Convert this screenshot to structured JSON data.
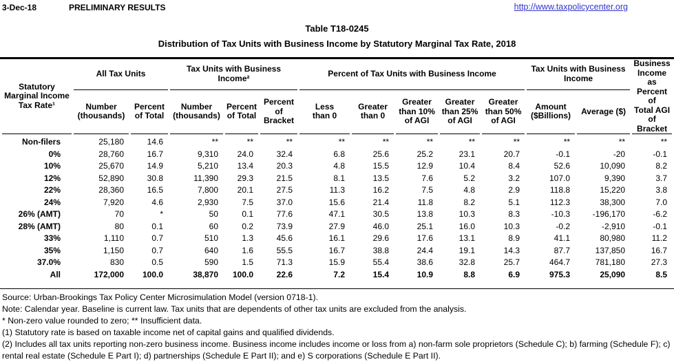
{
  "page": {
    "date": "3-Dec-18",
    "status": "PRELIMINARY RESULTS",
    "url": "http://www.taxpolicycenter.org",
    "table_number": "Table T18-0245",
    "title": "Distribution of Tax Units with Business Income by Statutory Marginal Tax Rate, 2018"
  },
  "table": {
    "stub_header": "Statutory\nMarginal Income\nTax Rate¹",
    "groups": [
      {
        "label": "All Tax Units"
      },
      {
        "label": "Tax Units with Business Income²"
      },
      {
        "label": "Percent of Tax Units with Business Income"
      },
      {
        "label": "Tax Units with Business\nIncome"
      }
    ],
    "last_col_header": "Business\nIncome as\nPercent of\nTotal AGI\nof Bracket",
    "sub_headers": [
      "Number\n(thousands)",
      "Percent\nof Total",
      "Number\n(thousands)",
      "Percent\nof Total",
      "Percent\nof\nBracket",
      "Less\nthan 0",
      "Greater\nthan 0",
      "Greater\nthan 10%\nof AGI",
      "Greater\nthan 25%\nof AGI",
      "Greater\nthan 50%\nof AGI",
      "Amount\n($Billions)",
      "Average ($)"
    ],
    "rows": [
      [
        "Non-filers",
        "25,180",
        "14.6",
        "**",
        "**",
        "**",
        "**",
        "**",
        "**",
        "**",
        "**",
        "**",
        "**",
        "**"
      ],
      [
        "0%",
        "28,760",
        "16.7",
        "9,310",
        "24.0",
        "32.4",
        "6.8",
        "25.6",
        "25.2",
        "23.1",
        "20.7",
        "-0.1",
        "-20",
        "-0.1"
      ],
      [
        "10%",
        "25,670",
        "14.9",
        "5,210",
        "13.4",
        "20.3",
        "4.8",
        "15.5",
        "12.9",
        "10.4",
        "8.4",
        "52.6",
        "10,090",
        "8.2"
      ],
      [
        "12%",
        "52,890",
        "30.8",
        "11,390",
        "29.3",
        "21.5",
        "8.1",
        "13.5",
        "7.6",
        "5.2",
        "3.2",
        "107.0",
        "9,390",
        "3.7"
      ],
      [
        "22%",
        "28,360",
        "16.5",
        "7,800",
        "20.1",
        "27.5",
        "11.3",
        "16.2",
        "7.5",
        "4.8",
        "2.9",
        "118.8",
        "15,220",
        "3.8"
      ],
      [
        "24%",
        "7,920",
        "4.6",
        "2,930",
        "7.5",
        "37.0",
        "15.6",
        "21.4",
        "11.8",
        "8.2",
        "5.1",
        "112.3",
        "38,300",
        "7.0"
      ],
      [
        "26% (AMT)",
        "70",
        "*",
        "50",
        "0.1",
        "77.6",
        "47.1",
        "30.5",
        "13.8",
        "10.3",
        "8.3",
        "-10.3",
        "-196,170",
        "-6.2"
      ],
      [
        "28% (AMT)",
        "80",
        "0.1",
        "60",
        "0.2",
        "73.9",
        "27.9",
        "46.0",
        "25.1",
        "16.0",
        "10.3",
        "-0.2",
        "-2,910",
        "-0.1"
      ],
      [
        "33%",
        "1,110",
        "0.7",
        "510",
        "1.3",
        "45.6",
        "16.1",
        "29.6",
        "17.6",
        "13.1",
        "8.9",
        "41.1",
        "80,980",
        "11.2"
      ],
      [
        "35%",
        "1,150",
        "0.7",
        "640",
        "1.6",
        "55.5",
        "16.7",
        "38.8",
        "24.4",
        "19.1",
        "14.3",
        "87.7",
        "137,850",
        "16.7"
      ],
      [
        "37.0%",
        "830",
        "0.5",
        "590",
        "1.5",
        "71.3",
        "15.9",
        "55.4",
        "38.6",
        "32.8",
        "25.7",
        "464.7",
        "781,180",
        "27.3"
      ],
      [
        "All",
        "172,000",
        "100.0",
        "38,870",
        "100.0",
        "22.6",
        "7.2",
        "15.4",
        "10.9",
        "8.8",
        "6.9",
        "975.3",
        "25,090",
        "8.5"
      ]
    ],
    "total_row_label": "All"
  },
  "notes": [
    "Source: Urban-Brookings Tax Policy Center Microsimulation Model (version 0718-1).",
    "Note: Calendar year. Baseline is current law. Tax units that are dependents of other tax units are excluded from the analysis.",
    "* Non-zero value rounded to zero; ** Insufficient data.",
    "(1) Statutory rate is based on taxable income net of capital gains and qualified dividends.",
    "(2) Includes all tax units reporting non-zero business income. Business income includes income or loss from a) non-farm sole proprietors (Schedule C); b) farming (Schedule F); c) rental real estate (Schedule E Part I); d) partnerships (Schedule E Part II); and e) S corporations (Schedule E Part II)."
  ],
  "colors": {
    "link": "#3333CC",
    "text": "#000000",
    "background": "#FFFFFF",
    "rule": "#000000"
  }
}
